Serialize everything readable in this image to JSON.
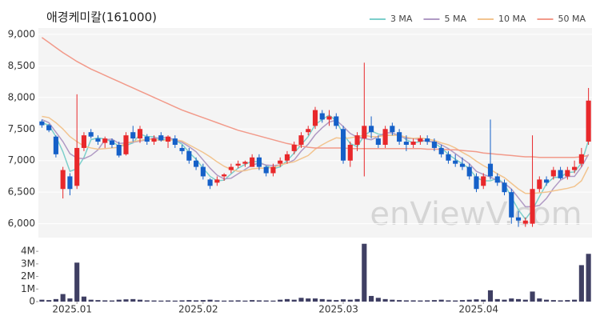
{
  "chart_data": [
    {
      "type": "candlestick",
      "title": "애경케미칼(161000)",
      "watermark": "enViewV.com",
      "open": [
        7620,
        7560,
        7380,
        6550,
        6750,
        6600,
        7200,
        7450,
        7350,
        7280,
        7320,
        7250,
        7100,
        7450,
        7350,
        7380,
        7300,
        7400,
        7300,
        7350,
        7200,
        7150,
        7000,
        6900,
        6700,
        6650,
        6750,
        6850,
        6920,
        6950,
        6900,
        7050,
        6900,
        6800,
        6950,
        7000,
        7150,
        7250,
        7450,
        7550,
        7750,
        7650,
        7700,
        7500,
        7000,
        7250,
        7350,
        7550,
        7350,
        7250,
        7550,
        7450,
        7300,
        7250,
        7300,
        7350,
        7300,
        7200,
        7100,
        7000,
        6950,
        6900,
        6750,
        6600,
        6950,
        6750,
        6650,
        6500,
        6100,
        6000,
        6000,
        6550,
        6700,
        6750,
        6850,
        6750,
        6850,
        6950,
        7300
      ],
      "high": [
        7650,
        7580,
        7400,
        6900,
        6800,
        8050,
        7450,
        7500,
        7400,
        7380,
        7350,
        7300,
        7450,
        7550,
        7550,
        7420,
        7400,
        7450,
        7400,
        7400,
        7250,
        7200,
        7050,
        6950,
        6720,
        6750,
        6800,
        6950,
        7000,
        7000,
        7100,
        7100,
        6920,
        6950,
        7050,
        7150,
        7300,
        7450,
        7550,
        7850,
        7800,
        7800,
        7750,
        7550,
        7300,
        7450,
        8550,
        7700,
        7400,
        7550,
        7600,
        7500,
        7400,
        7350,
        7400,
        7400,
        7350,
        7250,
        7150,
        7100,
        7050,
        6950,
        6800,
        6800,
        7650,
        6800,
        6700,
        6550,
        6200,
        6100,
        7400,
        6750,
        6750,
        6900,
        6900,
        6900,
        7000,
        7200,
        8150
      ],
      "low": [
        7520,
        7450,
        7050,
        6400,
        6450,
        6550,
        7150,
        7350,
        7250,
        7200,
        7200,
        7050,
        7080,
        7300,
        7280,
        7250,
        7250,
        7300,
        7200,
        7200,
        7100,
        6950,
        6850,
        6700,
        6550,
        6600,
        6680,
        6800,
        6880,
        6900,
        6900,
        6850,
        6750,
        6750,
        6900,
        6950,
        7100,
        7200,
        7400,
        7500,
        7600,
        7550,
        7500,
        6950,
        6900,
        7150,
        6750,
        7350,
        7200,
        7200,
        7400,
        7250,
        7150,
        7200,
        7250,
        7250,
        7150,
        7050,
        6950,
        6900,
        6850,
        6700,
        6500,
        6550,
        6700,
        6600,
        6450,
        6000,
        5950,
        5950,
        5950,
        6500,
        6600,
        6700,
        6700,
        6700,
        6800,
        6900,
        7250
      ],
      "close": [
        7560,
        7480,
        7100,
        6850,
        6550,
        7200,
        7400,
        7380,
        7300,
        7350,
        7250,
        7080,
        7400,
        7350,
        7500,
        7300,
        7350,
        7320,
        7380,
        7250,
        7150,
        7000,
        6900,
        6750,
        6600,
        6700,
        6780,
        6900,
        6950,
        6980,
        7050,
        6900,
        6800,
        6900,
        7000,
        7100,
        7250,
        7400,
        7500,
        7800,
        7650,
        7700,
        7550,
        7000,
        7250,
        7400,
        7550,
        7450,
        7250,
        7500,
        7450,
        7300,
        7250,
        7300,
        7350,
        7300,
        7200,
        7100,
        7000,
        6950,
        6900,
        6750,
        6550,
        6750,
        6750,
        6650,
        6500,
        6100,
        6050,
        6050,
        6550,
        6700,
        6650,
        6850,
        6720,
        6850,
        6900,
        7100,
        7950
      ],
      "up_color": "#e8282b",
      "down_color": "#1560c8",
      "series": [
        {
          "name": "3 MA",
          "color": "#7ccfcb",
          "values": [
            7600,
            7560,
            7380,
            7140,
            6830,
            6870,
            7050,
            7330,
            7360,
            7340,
            7300,
            7230,
            7240,
            7280,
            7420,
            7380,
            7380,
            7320,
            7350,
            7320,
            7260,
            7130,
            7020,
            6880,
            6750,
            6680,
            6690,
            6790,
            6880,
            6940,
            6990,
            6980,
            6920,
            6870,
            6900,
            7000,
            7120,
            7250,
            7380,
            7570,
            7650,
            7720,
            7630,
            7420,
            7270,
            7220,
            7400,
            7470,
            7420,
            7400,
            7400,
            7420,
            7330,
            7280,
            7300,
            7320,
            7280,
            7200,
            7100,
            7020,
            6950,
            6870,
            6730,
            6680,
            6680,
            6720,
            6630,
            6420,
            6220,
            6070,
            6220,
            6430,
            6630,
            6730,
            6740,
            6810,
            6820,
            6960,
            7320
          ]
        },
        {
          "name": "5 MA",
          "color": "#b09ac4",
          "values": [
            7650,
            7600,
            7450,
            7300,
            7110,
            7040,
            7030,
            7080,
            7170,
            7330,
            7340,
            7270,
            7280,
            7290,
            7310,
            7330,
            7360,
            7360,
            7370,
            7320,
            7290,
            7220,
            7140,
            7010,
            6880,
            6770,
            6710,
            6720,
            6790,
            6860,
            6930,
            6960,
            6930,
            6920,
            6930,
            6960,
            7010,
            7150,
            7260,
            7410,
            7520,
            7610,
            7640,
            7540,
            7430,
            7370,
            7350,
            7330,
            7380,
            7440,
            7440,
            7390,
            7350,
            7350,
            7330,
            7300,
            7300,
            7250,
            7190,
            7110,
            7030,
            6950,
            6830,
            6780,
            6740,
            6680,
            6640,
            6550,
            6410,
            6270,
            6270,
            6290,
            6400,
            6560,
            6690,
            6750,
            6750,
            6900,
            7100
          ]
        },
        {
          "name": "10 MA",
          "color": "#f2c48f",
          "values": [
            7700,
            7680,
            7600,
            7500,
            7380,
            7300,
            7230,
            7200,
            7180,
            7190,
            7200,
            7210,
            7280,
            7300,
            7320,
            7340,
            7330,
            7320,
            7320,
            7330,
            7310,
            7250,
            7190,
            7130,
            7060,
            6980,
            6910,
            6860,
            6830,
            6840,
            6870,
            6880,
            6880,
            6890,
            6930,
            6960,
            6980,
            7030,
            7080,
            7180,
            7250,
            7310,
            7360,
            7350,
            7360,
            7380,
            7400,
            7380,
            7380,
            7400,
            7400,
            7400,
            7370,
            7350,
            7360,
            7340,
            7320,
            7280,
            7250,
            7200,
            7130,
            7070,
            6990,
            6920,
            6860,
            6790,
            6730,
            6640,
            6550,
            6480,
            6480,
            6490,
            6500,
            6520,
            6540,
            6560,
            6590,
            6680,
            6900
          ]
        },
        {
          "name": "50 MA",
          "color": "#f29a8a",
          "values": [
            8950,
            8870,
            8790,
            8710,
            8640,
            8570,
            8510,
            8450,
            8400,
            8350,
            8300,
            8250,
            8200,
            8150,
            8100,
            8050,
            8000,
            7950,
            7900,
            7850,
            7800,
            7760,
            7720,
            7680,
            7640,
            7600,
            7560,
            7520,
            7480,
            7450,
            7420,
            7390,
            7360,
            7330,
            7300,
            7270,
            7250,
            7230,
            7210,
            7200,
            7200,
            7200,
            7200,
            7200,
            7190,
            7190,
            7190,
            7190,
            7190,
            7190,
            7190,
            7190,
            7190,
            7190,
            7190,
            7180,
            7180,
            7180,
            7170,
            7170,
            7160,
            7150,
            7140,
            7120,
            7110,
            7100,
            7090,
            7080,
            7070,
            7060,
            7060,
            7050,
            7050,
            7050,
            7050,
            7050,
            7050,
            7060,
            7080
          ]
        }
      ],
      "ylim": [
        5780,
        9100
      ],
      "yticks": [
        {
          "value": 6000,
          "label": "6,000"
        },
        {
          "value": 6500,
          "label": "6,500"
        },
        {
          "value": 7000,
          "label": "7,000"
        },
        {
          "value": 7500,
          "label": "7,500"
        },
        {
          "value": 8000,
          "label": "8,000"
        },
        {
          "value": 8500,
          "label": "8,500"
        },
        {
          "value": 9000,
          "label": "9,000"
        }
      ],
      "grid": true,
      "legend": "top-right"
    },
    {
      "type": "bar",
      "color": "#3f3f63",
      "categories": [
        null,
        null,
        null,
        null,
        null,
        "2025.01",
        null,
        null,
        null,
        null,
        null,
        null,
        null,
        null,
        null,
        null,
        null,
        null,
        null,
        null,
        null,
        null,
        null,
        "2025.02",
        null,
        null,
        null,
        null,
        null,
        null,
        null,
        null,
        null,
        null,
        null,
        null,
        null,
        null,
        null,
        null,
        null,
        null,
        null,
        "2025.03",
        null,
        null,
        null,
        null,
        null,
        null,
        null,
        null,
        null,
        null,
        null,
        null,
        null,
        null,
        null,
        null,
        null,
        null,
        null,
        "2025.04",
        null,
        null,
        null,
        null,
        null,
        null,
        null,
        null,
        null,
        null,
        null,
        null,
        null,
        null,
        null
      ],
      "values": [
        150000,
        120000,
        200000,
        600000,
        250000,
        3100000,
        400000,
        150000,
        120000,
        100000,
        90000,
        150000,
        180000,
        200000,
        150000,
        100000,
        90000,
        80000,
        90000,
        80000,
        100000,
        120000,
        100000,
        120000,
        150000,
        100000,
        80000,
        90000,
        100000,
        80000,
        120000,
        100000,
        90000,
        80000,
        150000,
        200000,
        150000,
        300000,
        250000,
        250000,
        200000,
        150000,
        120000,
        180000,
        150000,
        200000,
        4600000,
        450000,
        300000,
        200000,
        150000,
        120000,
        100000,
        100000,
        90000,
        100000,
        120000,
        150000,
        100000,
        90000,
        120000,
        150000,
        180000,
        150000,
        900000,
        200000,
        150000,
        250000,
        200000,
        150000,
        800000,
        250000,
        150000,
        120000,
        100000,
        120000,
        150000,
        2900000,
        3800000
      ],
      "ylim": [
        0,
        4900000
      ],
      "yticks": [
        0,
        {
          "value": 1000000,
          "label": "1M"
        },
        {
          "value": 2000000,
          "label": "2M"
        },
        {
          "value": 3000000,
          "label": "3M"
        },
        {
          "value": 4000000,
          "label": "4M"
        }
      ]
    }
  ]
}
